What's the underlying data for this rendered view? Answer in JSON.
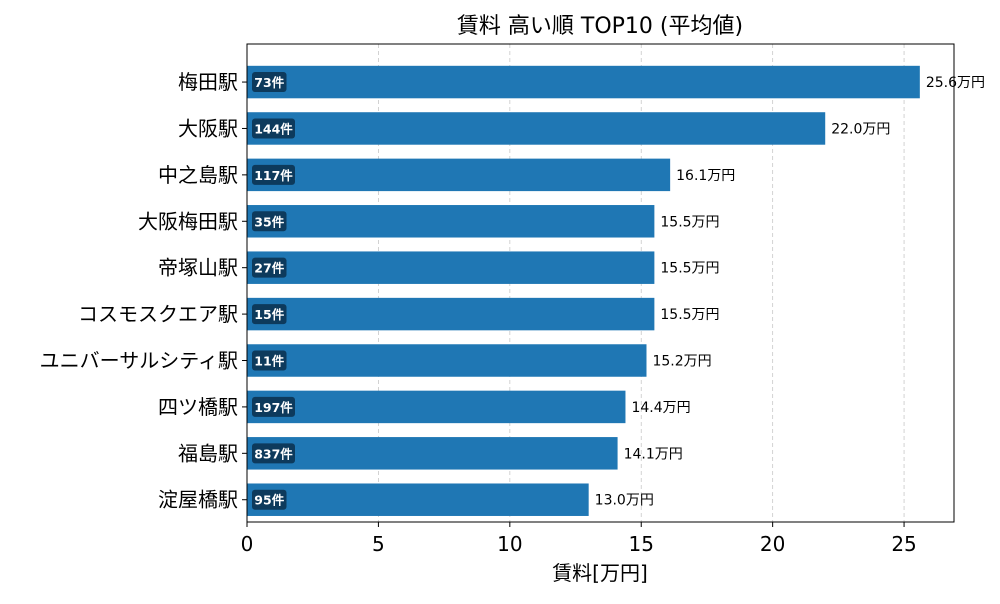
{
  "chart_data": {
    "type": "bar",
    "orientation": "horizontal",
    "title": "賃料 高い順 TOP10 (平均値)",
    "xlabel": "賃料[万円]",
    "ylabel": "",
    "xlim": [
      0,
      26.9
    ],
    "xticks": [
      0,
      5,
      10,
      15,
      20,
      25
    ],
    "grid": "x-dashed",
    "bar_color": "#1f77b4",
    "badge_color": "#0d3a5c",
    "categories": [
      "梅田駅",
      "大阪駅",
      "中之島駅",
      "大阪梅田駅",
      "帝塚山駅",
      "コスモスクエア駅",
      "ユニバーサルシティ駅",
      "四ツ橋駅",
      "福島駅",
      "淀屋橋駅"
    ],
    "values": [
      25.6,
      22.0,
      16.1,
      15.5,
      15.5,
      15.5,
      15.2,
      14.4,
      14.1,
      13.0
    ],
    "value_labels": [
      "25.6万円",
      "22.0万円",
      "16.1万円",
      "15.5万円",
      "15.5万円",
      "15.5万円",
      "15.2万円",
      "14.4万円",
      "14.1万円",
      "13.0万円"
    ],
    "counts": [
      "73件",
      "144件",
      "117件",
      "35件",
      "27件",
      "15件",
      "11件",
      "197件",
      "837件",
      "95件"
    ]
  }
}
